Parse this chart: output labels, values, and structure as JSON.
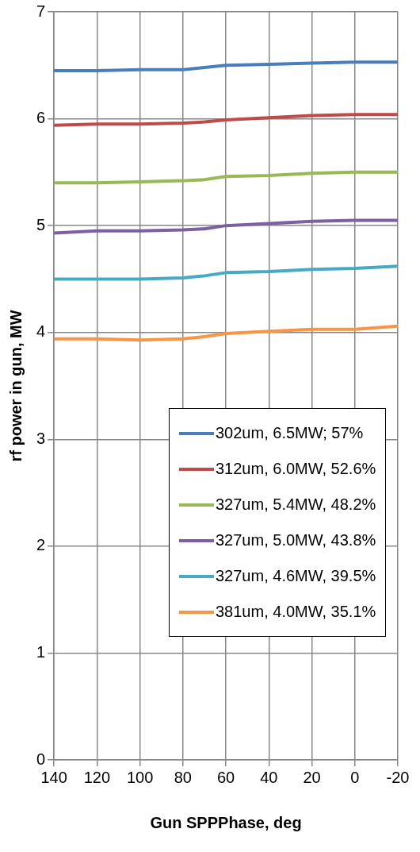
{
  "chart_data": {
    "type": "line",
    "xlabel": "Gun SPPPhase, deg",
    "ylabel": "rf power in gun, MW",
    "x": [
      140,
      120,
      100,
      80,
      70,
      60,
      40,
      20,
      0,
      -20
    ],
    "series": [
      {
        "name": "302um, 6.5MW; 57%",
        "color": "#4a7ebb",
        "values": [
          6.45,
          6.45,
          6.46,
          6.46,
          6.48,
          6.5,
          6.51,
          6.52,
          6.53,
          6.53
        ]
      },
      {
        "name": "312um, 6.0MW, 52.6%",
        "color": "#be4b48",
        "values": [
          5.94,
          5.95,
          5.95,
          5.96,
          5.97,
          5.99,
          6.01,
          6.03,
          6.04,
          6.04
        ]
      },
      {
        "name": "327um, 5.4MW, 48.2%",
        "color": "#98b954",
        "values": [
          5.4,
          5.4,
          5.41,
          5.42,
          5.43,
          5.46,
          5.47,
          5.49,
          5.5,
          5.5
        ]
      },
      {
        "name": "327um, 5.0MW, 43.8%",
        "color": "#7d60a0",
        "values": [
          4.93,
          4.95,
          4.95,
          4.96,
          4.97,
          5.0,
          5.02,
          5.04,
          5.05,
          5.05
        ]
      },
      {
        "name": "327um, 4.6MW, 39.5%",
        "color": "#46aac5",
        "values": [
          4.5,
          4.5,
          4.5,
          4.51,
          4.53,
          4.56,
          4.57,
          4.59,
          4.6,
          4.62
        ]
      },
      {
        "name": "381um, 4.0MW, 35.1%",
        "color": "#f79646",
        "values": [
          3.94,
          3.94,
          3.93,
          3.94,
          3.96,
          3.99,
          4.01,
          4.03,
          4.03,
          4.06
        ]
      }
    ],
    "xlim": [
      140,
      -20
    ],
    "xticks": [
      140,
      120,
      100,
      80,
      60,
      40,
      20,
      0,
      -20
    ],
    "ylim": [
      0,
      7
    ],
    "yticks": [
      0,
      1,
      2,
      3,
      4,
      5,
      6,
      7
    ],
    "grid": true,
    "legend": "right",
    "marker": "none",
    "line_style": "solid"
  }
}
